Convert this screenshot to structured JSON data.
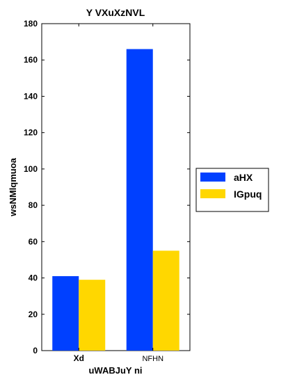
{
  "chart_data": {
    "type": "bar",
    "title": "Y VXuXzNVL",
    "xlabel": "uWABJuY ni",
    "ylabel": "wsNMlqmuoa",
    "categories": [
      "Xd",
      "NFHN"
    ],
    "series": [
      {
        "name": "aHX",
        "values": [
          41,
          166
        ],
        "color": "#0040ff"
      },
      {
        "name": "IGpuq",
        "values": [
          39,
          55
        ],
        "color": "#ffd700"
      }
    ],
    "ylim": [
      0,
      180
    ],
    "yticks": [
      0,
      20,
      40,
      60,
      80,
      100,
      120,
      140,
      160,
      180
    ],
    "grid": false,
    "legend_position": "outside right"
  }
}
